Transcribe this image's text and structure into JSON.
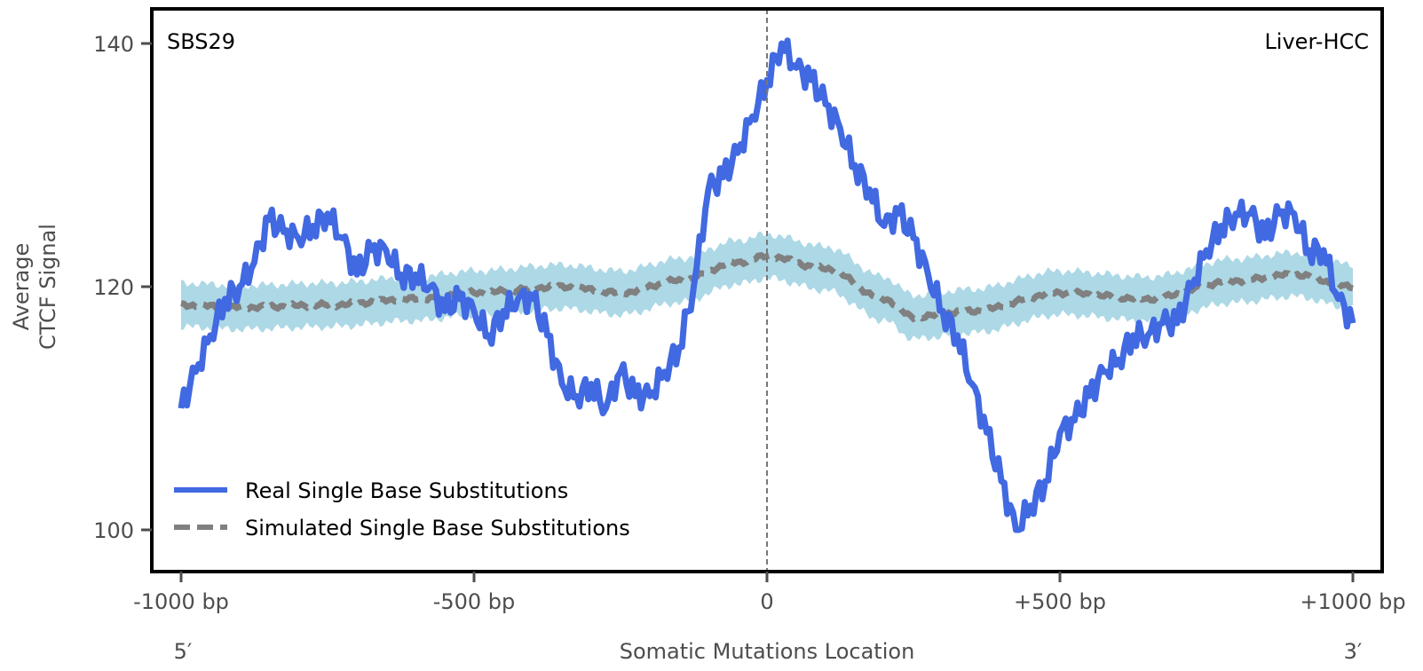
{
  "chart_data": {
    "type": "line",
    "signature_label": "SBS29",
    "cancer_label": "Liver-HCC",
    "xlabel": "Somatic Mutations Location",
    "ylabel_line1": "Average",
    "ylabel_line2": "CTCF Signal",
    "x_end_labels": {
      "left": "5′",
      "right": "3′"
    },
    "xlim": [
      -1050,
      1050
    ],
    "ylim": [
      97.5,
      143
    ],
    "xticks": [
      -1000,
      -500,
      0,
      500,
      1000
    ],
    "xtick_labels": [
      "-1000 bp",
      "-500 bp",
      "0",
      "+500 bp",
      "+1000 bp"
    ],
    "yticks": [
      100,
      120,
      140
    ],
    "ytick_labels": [
      "100",
      "120",
      "140"
    ],
    "center_line_x": 0,
    "grid": false,
    "legend_position": "bottom-left",
    "series": [
      {
        "name": "Real Single Base Substitutions",
        "style": "solid",
        "color": "#4169e1",
        "x": [
          -1000,
          -975,
          -950,
          -925,
          -900,
          -875,
          -850,
          -825,
          -800,
          -775,
          -750,
          -725,
          -700,
          -675,
          -650,
          -625,
          -600,
          -575,
          -550,
          -525,
          -500,
          -475,
          -450,
          -425,
          -400,
          -375,
          -350,
          -325,
          -300,
          -275,
          -250,
          -225,
          -200,
          -175,
          -150,
          -125,
          -100,
          -75,
          -50,
          -25,
          0,
          25,
          50,
          75,
          100,
          125,
          150,
          175,
          200,
          225,
          250,
          275,
          300,
          325,
          350,
          375,
          400,
          425,
          450,
          475,
          500,
          525,
          550,
          575,
          600,
          625,
          650,
          675,
          700,
          725,
          750,
          775,
          800,
          825,
          850,
          875,
          900,
          925,
          950,
          975,
          1000
        ],
        "values": [
          110,
          113,
          116,
          119,
          120,
          122,
          125.5,
          124.5,
          124,
          125,
          126,
          124,
          121,
          123,
          123,
          121,
          121,
          120,
          118,
          119,
          118,
          116,
          118,
          119,
          119,
          116,
          112,
          111,
          112,
          110,
          113,
          111,
          111,
          113,
          115,
          120,
          128,
          129,
          131,
          134,
          137,
          140,
          138,
          137,
          135,
          133,
          130,
          128,
          125,
          126,
          124,
          121,
          118,
          116,
          112,
          108,
          104,
          100,
          102,
          104,
          108,
          109,
          111,
          113,
          114,
          116,
          116,
          117,
          117,
          120,
          123,
          125,
          126,
          126,
          124,
          126,
          126,
          123,
          123,
          119,
          117
        ]
      },
      {
        "name": "Simulated Single Base Substitutions",
        "style": "dashed",
        "color": "#808080",
        "band_color": "#add8e6",
        "band_halfwidth": 1.8,
        "x": [
          -1000,
          -900,
          -750,
          -600,
          -500,
          -350,
          -250,
          -150,
          -50,
          0,
          100,
          200,
          250,
          350,
          500,
          650,
          800,
          900,
          1000
        ],
        "values": [
          118.5,
          118.3,
          118.5,
          119,
          119.5,
          120,
          119.5,
          120.5,
          122,
          122.5,
          121.5,
          119,
          117.5,
          118,
          119.5,
          119,
          120.5,
          121,
          120
        ]
      }
    ]
  }
}
